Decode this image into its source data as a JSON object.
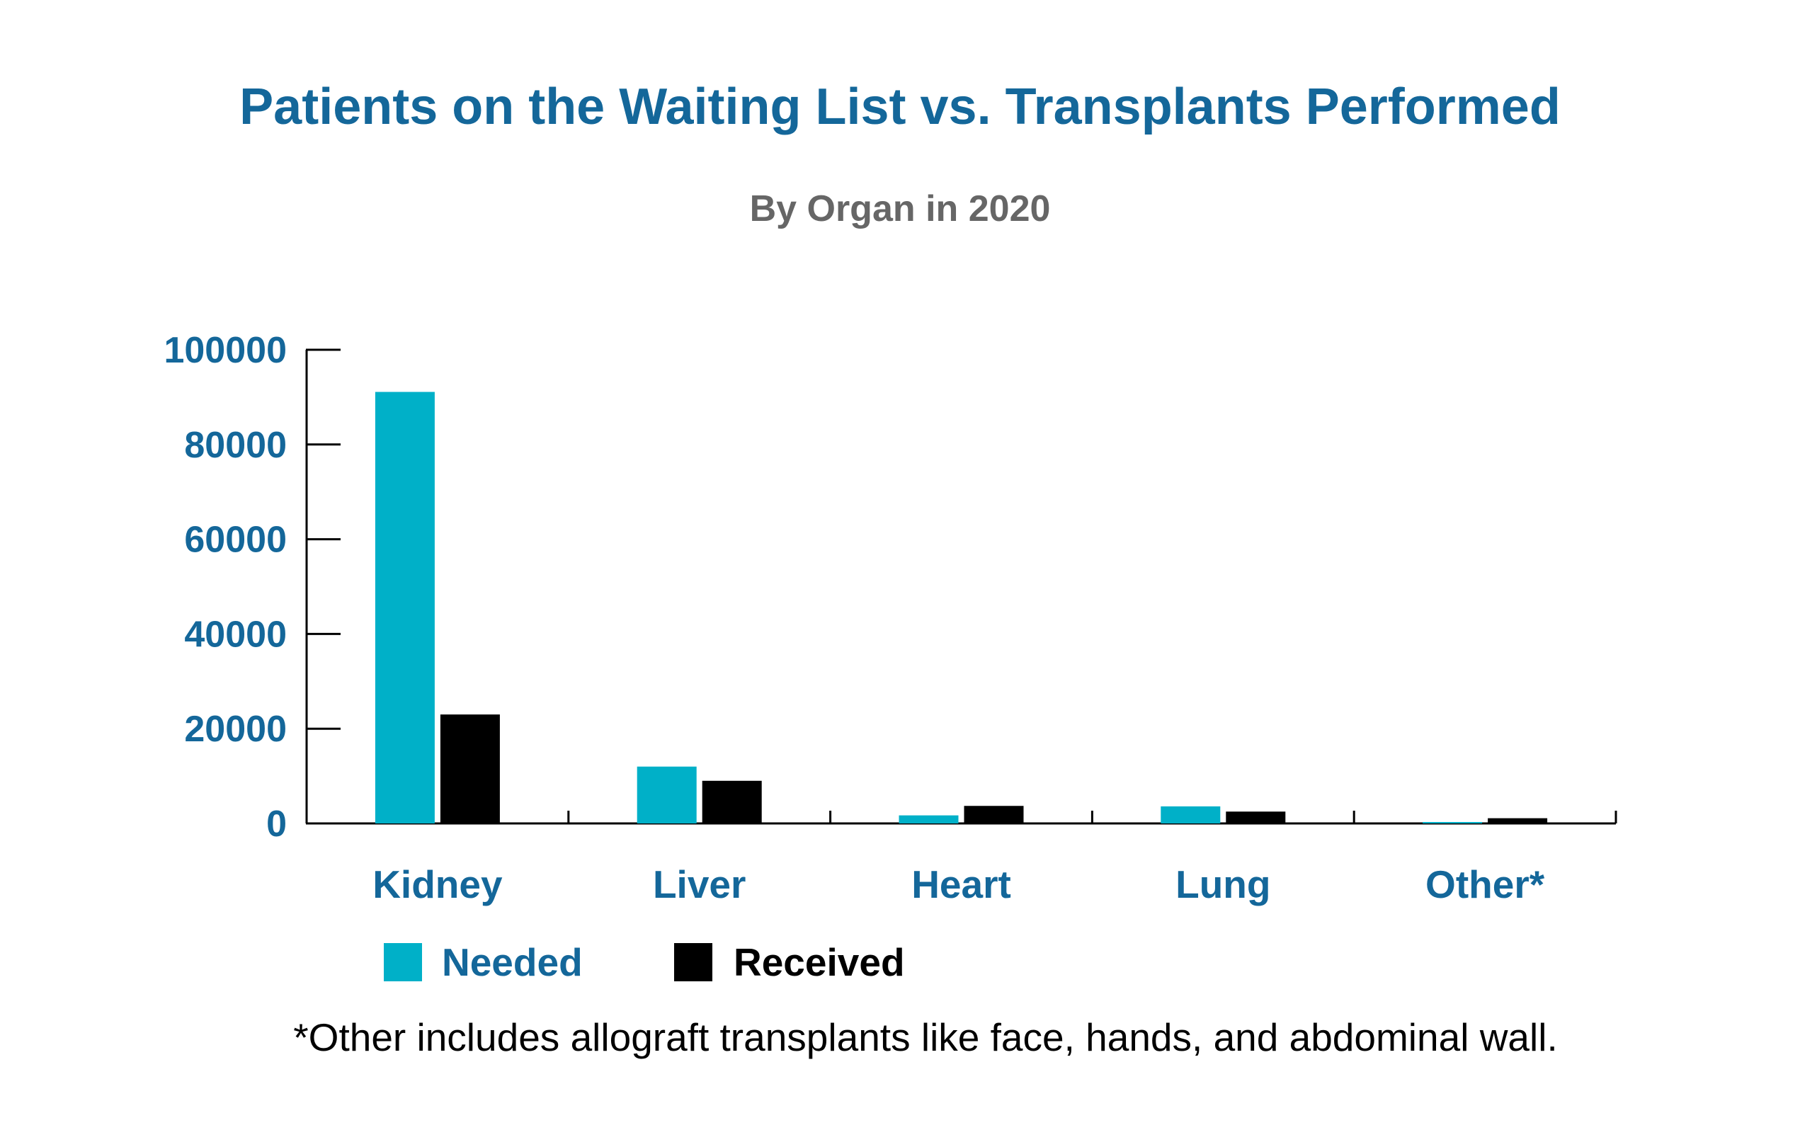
{
  "chart_data": {
    "type": "bar",
    "title": "Patients on the Waiting List vs. Transplants Performed",
    "subtitle": "By Organ in 2020",
    "categories": [
      "Kidney",
      "Liver",
      "Heart",
      "Lung",
      "Other*"
    ],
    "series": [
      {
        "name": "Needed",
        "values": [
          91100,
          12000,
          1700,
          3600,
          200
        ],
        "color": "#00b0c8"
      },
      {
        "name": "Received",
        "values": [
          23000,
          9000,
          3700,
          2500,
          1100
        ],
        "color": "#000000"
      }
    ],
    "xlabel": "",
    "ylabel": "",
    "ylim": [
      0,
      100000
    ],
    "yticks": [
      "0",
      "20000",
      "40000",
      "60000",
      "80000",
      "100000"
    ],
    "legend_position": "bottom-left",
    "footnote": "*Other includes allograft transplants like face, hands, and abdominal wall."
  },
  "colors": {
    "title": "#14679a",
    "subtitle": "#666666",
    "axis_text": "#14679a",
    "axis_line": "#000000",
    "footnote": "#000000"
  }
}
